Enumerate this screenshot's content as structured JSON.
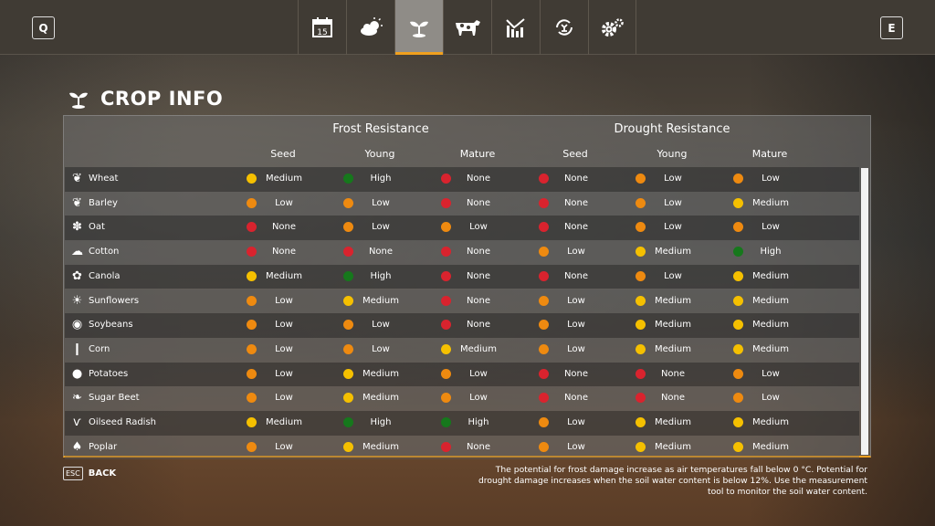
{
  "nav": {
    "left_key": "Q",
    "right_key": "E",
    "tabs": [
      {
        "icon": "calendar-icon",
        "label": "15"
      },
      {
        "icon": "weather-icon"
      },
      {
        "icon": "crop-icon",
        "active": true
      },
      {
        "icon": "animal-icon"
      },
      {
        "icon": "statistics-icon"
      },
      {
        "icon": "production-cycle-icon"
      },
      {
        "icon": "settings-icon"
      }
    ]
  },
  "page": {
    "title": "CROP INFO"
  },
  "table": {
    "groups": [
      "Frost Resistance",
      "Drought Resistance"
    ],
    "subheaders": [
      "Seed",
      "Young",
      "Mature",
      "Seed",
      "Young",
      "Mature"
    ],
    "level_colors": {
      "None": "#d9232e",
      "Low": "#ee8a10",
      "Medium": "#f5c000",
      "High": "#16781c"
    },
    "rows": [
      {
        "name": "Wheat",
        "values": [
          "Medium",
          "High",
          "None",
          "None",
          "Low",
          "Low"
        ]
      },
      {
        "name": "Barley",
        "values": [
          "Low",
          "Low",
          "None",
          "None",
          "Low",
          "Medium"
        ]
      },
      {
        "name": "Oat",
        "values": [
          "None",
          "Low",
          "Low",
          "None",
          "Low",
          "Low"
        ]
      },
      {
        "name": "Cotton",
        "values": [
          "None",
          "None",
          "None",
          "Low",
          "Medium",
          "High"
        ]
      },
      {
        "name": "Canola",
        "values": [
          "Medium",
          "High",
          "None",
          "None",
          "Low",
          "Medium"
        ]
      },
      {
        "name": "Sunflowers",
        "values": [
          "Low",
          "Medium",
          "None",
          "Low",
          "Medium",
          "Medium"
        ]
      },
      {
        "name": "Soybeans",
        "values": [
          "Low",
          "Low",
          "None",
          "Low",
          "Medium",
          "Medium"
        ]
      },
      {
        "name": "Corn",
        "values": [
          "Low",
          "Low",
          "Medium",
          "Low",
          "Medium",
          "Medium"
        ]
      },
      {
        "name": "Potatoes",
        "values": [
          "Low",
          "Medium",
          "Low",
          "None",
          "None",
          "Low"
        ]
      },
      {
        "name": "Sugar Beet",
        "values": [
          "Low",
          "Medium",
          "Low",
          "None",
          "None",
          "Low"
        ]
      },
      {
        "name": "Oilseed Radish",
        "values": [
          "Medium",
          "High",
          "High",
          "Low",
          "Medium",
          "Medium"
        ]
      },
      {
        "name": "Poplar",
        "values": [
          "Low",
          "Medium",
          "None",
          "Low",
          "Medium",
          "Medium"
        ]
      }
    ]
  },
  "footer": {
    "esc_key": "ESC",
    "back_label": "BACK",
    "note": "The potential for frost damage increase as air temperatures fall below 0 °C. Potential for drought damage increases when the soil water content is below 12%. Use the measurement tool to monitor the soil water content."
  }
}
